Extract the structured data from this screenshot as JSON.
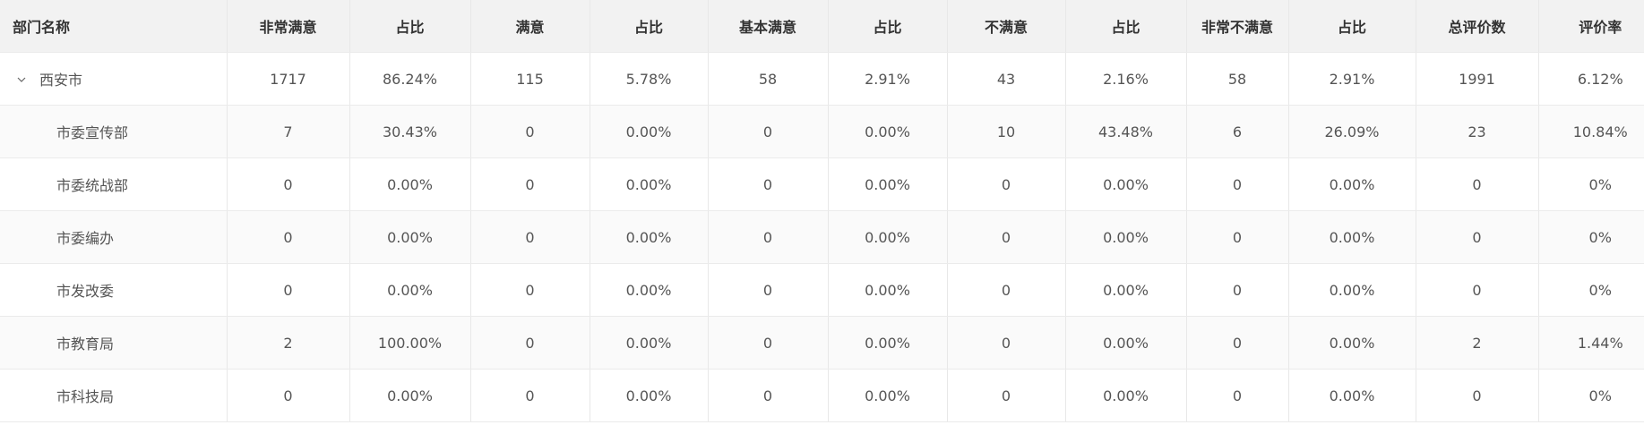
{
  "table": {
    "headers": [
      "部门名称",
      "非常满意",
      "占比",
      "满意",
      "占比",
      "基本满意",
      "占比",
      "不满意",
      "占比",
      "非常不满意",
      "占比",
      "总评价数",
      "评价率"
    ],
    "rows": [
      {
        "name": "西安市",
        "level": "parent",
        "values": [
          "1717",
          "86.24%",
          "115",
          "5.78%",
          "58",
          "2.91%",
          "43",
          "2.16%",
          "58",
          "2.91%",
          "1991",
          "6.12%"
        ]
      },
      {
        "name": "市委宣传部",
        "level": "child",
        "values": [
          "7",
          "30.43%",
          "0",
          "0.00%",
          "0",
          "0.00%",
          "10",
          "43.48%",
          "6",
          "26.09%",
          "23",
          "10.84%"
        ]
      },
      {
        "name": "市委统战部",
        "level": "child",
        "values": [
          "0",
          "0.00%",
          "0",
          "0.00%",
          "0",
          "0.00%",
          "0",
          "0.00%",
          "0",
          "0.00%",
          "0",
          "0%"
        ]
      },
      {
        "name": "市委编办",
        "level": "child",
        "values": [
          "0",
          "0.00%",
          "0",
          "0.00%",
          "0",
          "0.00%",
          "0",
          "0.00%",
          "0",
          "0.00%",
          "0",
          "0%"
        ]
      },
      {
        "name": "市发改委",
        "level": "child",
        "values": [
          "0",
          "0.00%",
          "0",
          "0.00%",
          "0",
          "0.00%",
          "0",
          "0.00%",
          "0",
          "0.00%",
          "0",
          "0%"
        ]
      },
      {
        "name": "市教育局",
        "level": "child",
        "values": [
          "2",
          "100.00%",
          "0",
          "0.00%",
          "0",
          "0.00%",
          "0",
          "0.00%",
          "0",
          "0.00%",
          "2",
          "1.44%"
        ]
      },
      {
        "name": "市科技局",
        "level": "child",
        "values": [
          "0",
          "0.00%",
          "0",
          "0.00%",
          "0",
          "0.00%",
          "0",
          "0.00%",
          "0",
          "0.00%",
          "0",
          "0%"
        ]
      }
    ]
  },
  "icons": {
    "expand": "chevron-down-icon"
  }
}
